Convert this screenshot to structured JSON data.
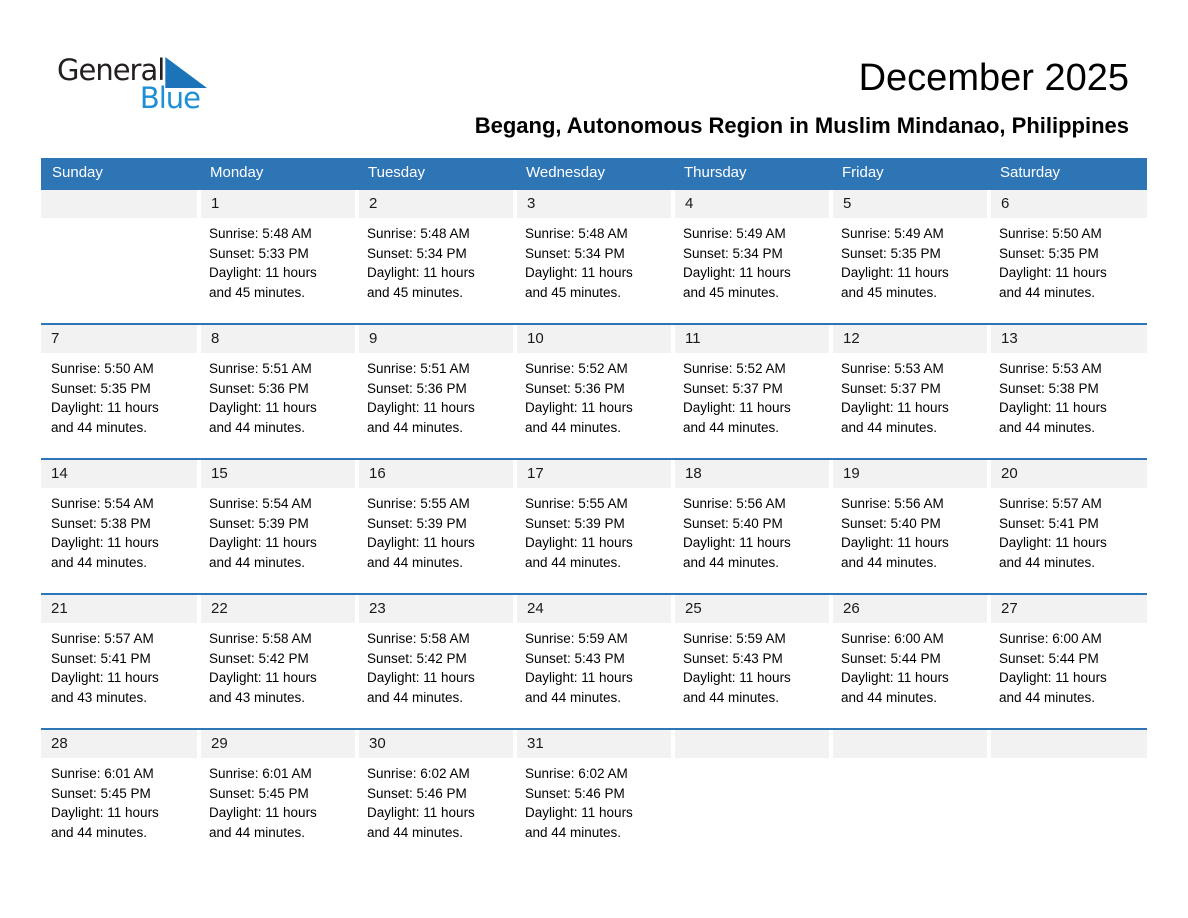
{
  "logo": {
    "general": "General",
    "blue": "Blue"
  },
  "title": "December 2025",
  "subtitle": "Begang, Autonomous Region in Muslim Mindanao, Philippines",
  "weekday_headers": [
    "Sunday",
    "Monday",
    "Tuesday",
    "Wednesday",
    "Thursday",
    "Friday",
    "Saturday"
  ],
  "colors": {
    "header_blue": "#2E75B6",
    "row_separator_blue": "#2E75B6",
    "day_band_gray": "#F2F2F2",
    "logo_triangle_blue": "#1B74B8",
    "logo_blue_text": "#1E8FD5"
  },
  "weeks": [
    [
      null,
      {
        "day": "1",
        "lines": [
          "Sunrise: 5:48 AM",
          "Sunset: 5:33 PM",
          "Daylight: 11 hours",
          "and 45 minutes."
        ]
      },
      {
        "day": "2",
        "lines": [
          "Sunrise: 5:48 AM",
          "Sunset: 5:34 PM",
          "Daylight: 11 hours",
          "and 45 minutes."
        ]
      },
      {
        "day": "3",
        "lines": [
          "Sunrise: 5:48 AM",
          "Sunset: 5:34 PM",
          "Daylight: 11 hours",
          "and 45 minutes."
        ]
      },
      {
        "day": "4",
        "lines": [
          "Sunrise: 5:49 AM",
          "Sunset: 5:34 PM",
          "Daylight: 11 hours",
          "and 45 minutes."
        ]
      },
      {
        "day": "5",
        "lines": [
          "Sunrise: 5:49 AM",
          "Sunset: 5:35 PM",
          "Daylight: 11 hours",
          "and 45 minutes."
        ]
      },
      {
        "day": "6",
        "lines": [
          "Sunrise: 5:50 AM",
          "Sunset: 5:35 PM",
          "Daylight: 11 hours",
          "and 44 minutes."
        ]
      }
    ],
    [
      {
        "day": "7",
        "lines": [
          "Sunrise: 5:50 AM",
          "Sunset: 5:35 PM",
          "Daylight: 11 hours",
          "and 44 minutes."
        ]
      },
      {
        "day": "8",
        "lines": [
          "Sunrise: 5:51 AM",
          "Sunset: 5:36 PM",
          "Daylight: 11 hours",
          "and 44 minutes."
        ]
      },
      {
        "day": "9",
        "lines": [
          "Sunrise: 5:51 AM",
          "Sunset: 5:36 PM",
          "Daylight: 11 hours",
          "and 44 minutes."
        ]
      },
      {
        "day": "10",
        "lines": [
          "Sunrise: 5:52 AM",
          "Sunset: 5:36 PM",
          "Daylight: 11 hours",
          "and 44 minutes."
        ]
      },
      {
        "day": "11",
        "lines": [
          "Sunrise: 5:52 AM",
          "Sunset: 5:37 PM",
          "Daylight: 11 hours",
          "and 44 minutes."
        ]
      },
      {
        "day": "12",
        "lines": [
          "Sunrise: 5:53 AM",
          "Sunset: 5:37 PM",
          "Daylight: 11 hours",
          "and 44 minutes."
        ]
      },
      {
        "day": "13",
        "lines": [
          "Sunrise: 5:53 AM",
          "Sunset: 5:38 PM",
          "Daylight: 11 hours",
          "and 44 minutes."
        ]
      }
    ],
    [
      {
        "day": "14",
        "lines": [
          "Sunrise: 5:54 AM",
          "Sunset: 5:38 PM",
          "Daylight: 11 hours",
          "and 44 minutes."
        ]
      },
      {
        "day": "15",
        "lines": [
          "Sunrise: 5:54 AM",
          "Sunset: 5:39 PM",
          "Daylight: 11 hours",
          "and 44 minutes."
        ]
      },
      {
        "day": "16",
        "lines": [
          "Sunrise: 5:55 AM",
          "Sunset: 5:39 PM",
          "Daylight: 11 hours",
          "and 44 minutes."
        ]
      },
      {
        "day": "17",
        "lines": [
          "Sunrise: 5:55 AM",
          "Sunset: 5:39 PM",
          "Daylight: 11 hours",
          "and 44 minutes."
        ]
      },
      {
        "day": "18",
        "lines": [
          "Sunrise: 5:56 AM",
          "Sunset: 5:40 PM",
          "Daylight: 11 hours",
          "and 44 minutes."
        ]
      },
      {
        "day": "19",
        "lines": [
          "Sunrise: 5:56 AM",
          "Sunset: 5:40 PM",
          "Daylight: 11 hours",
          "and 44 minutes."
        ]
      },
      {
        "day": "20",
        "lines": [
          "Sunrise: 5:57 AM",
          "Sunset: 5:41 PM",
          "Daylight: 11 hours",
          "and 44 minutes."
        ]
      }
    ],
    [
      {
        "day": "21",
        "lines": [
          "Sunrise: 5:57 AM",
          "Sunset: 5:41 PM",
          "Daylight: 11 hours",
          "and 43 minutes."
        ]
      },
      {
        "day": "22",
        "lines": [
          "Sunrise: 5:58 AM",
          "Sunset: 5:42 PM",
          "Daylight: 11 hours",
          "and 43 minutes."
        ]
      },
      {
        "day": "23",
        "lines": [
          "Sunrise: 5:58 AM",
          "Sunset: 5:42 PM",
          "Daylight: 11 hours",
          "and 44 minutes."
        ]
      },
      {
        "day": "24",
        "lines": [
          "Sunrise: 5:59 AM",
          "Sunset: 5:43 PM",
          "Daylight: 11 hours",
          "and 44 minutes."
        ]
      },
      {
        "day": "25",
        "lines": [
          "Sunrise: 5:59 AM",
          "Sunset: 5:43 PM",
          "Daylight: 11 hours",
          "and 44 minutes."
        ]
      },
      {
        "day": "26",
        "lines": [
          "Sunrise: 6:00 AM",
          "Sunset: 5:44 PM",
          "Daylight: 11 hours",
          "and 44 minutes."
        ]
      },
      {
        "day": "27",
        "lines": [
          "Sunrise: 6:00 AM",
          "Sunset: 5:44 PM",
          "Daylight: 11 hours",
          "and 44 minutes."
        ]
      }
    ],
    [
      {
        "day": "28",
        "lines": [
          "Sunrise: 6:01 AM",
          "Sunset: 5:45 PM",
          "Daylight: 11 hours",
          "and 44 minutes."
        ]
      },
      {
        "day": "29",
        "lines": [
          "Sunrise: 6:01 AM",
          "Sunset: 5:45 PM",
          "Daylight: 11 hours",
          "and 44 minutes."
        ]
      },
      {
        "day": "30",
        "lines": [
          "Sunrise: 6:02 AM",
          "Sunset: 5:46 PM",
          "Daylight: 11 hours",
          "and 44 minutes."
        ]
      },
      {
        "day": "31",
        "lines": [
          "Sunrise: 6:02 AM",
          "Sunset: 5:46 PM",
          "Daylight: 11 hours",
          "and 44 minutes."
        ]
      },
      null,
      null,
      null
    ]
  ]
}
